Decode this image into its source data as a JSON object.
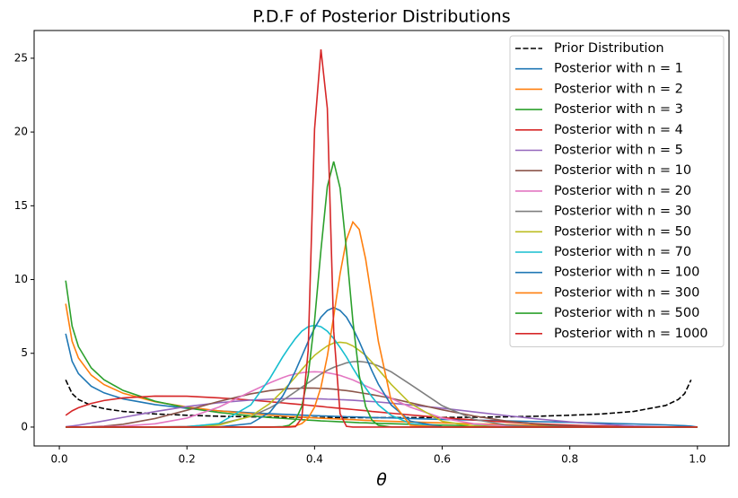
{
  "chart_data": {
    "type": "line",
    "title": "P.D.F of Posterior Distributions",
    "x_label": "θ",
    "x": [
      0.01,
      0.02,
      0.03,
      0.05,
      0.07,
      0.1,
      0.15,
      0.2,
      0.25,
      0.3,
      0.33,
      0.35,
      0.36,
      0.37,
      0.38,
      0.39,
      0.4,
      0.41,
      0.42,
      0.43,
      0.44,
      0.45,
      0.46,
      0.47,
      0.48,
      0.49,
      0.5,
      0.52,
      0.55,
      0.6,
      0.65,
      0.7,
      0.75,
      0.8,
      0.85,
      0.9,
      0.95,
      0.97,
      0.98,
      0.99,
      1.0
    ],
    "xlim": [
      -0.0395,
      1.0495
    ],
    "xticks": [
      {
        "value": 0,
        "label": "0.0"
      },
      0.2,
      0.4,
      0.6,
      0.8,
      {
        "value": 1,
        "label": "1.0"
      }
    ],
    "ylim": [
      -1.28,
      26.88
    ],
    "yticks": [
      0,
      5,
      10,
      15,
      20,
      25
    ],
    "grid": false,
    "legend": "upper right",
    "series": [
      {
        "name": "Prior Distribution",
        "color": "#000000",
        "dash": true,
        "values": [
          3.2,
          2.27,
          1.87,
          1.46,
          1.25,
          1.06,
          0.89,
          0.8,
          0.735,
          0.695,
          0.677,
          0.667,
          0.663,
          0.66,
          0.656,
          0.653,
          0.65,
          0.648,
          0.645,
          0.643,
          0.641,
          0.64,
          0.639,
          0.638,
          0.637,
          0.637,
          0.637,
          0.638,
          0.64,
          0.65,
          0.667,
          0.695,
          0.735,
          0.8,
          0.89,
          1.06,
          1.46,
          1.87,
          2.27,
          3.2,
          null
        ]
      },
      {
        "name": "Posterior with n = 1",
        "color": "#1f77b4",
        "values": [
          6.33,
          4.46,
          3.62,
          2.77,
          2.32,
          1.91,
          1.52,
          1.27,
          1.1,
          0.97,
          0.91,
          0.87,
          0.85,
          0.83,
          0.81,
          0.79,
          0.78,
          0.76,
          0.75,
          0.73,
          0.72,
          0.7,
          0.69,
          0.68,
          0.66,
          0.65,
          0.64,
          0.62,
          0.58,
          0.52,
          0.47,
          0.42,
          0.37,
          0.32,
          0.27,
          0.21,
          0.15,
          0.11,
          0.09,
          0.064,
          0
        ]
      },
      {
        "name": "Posterior with n = 2",
        "color": "#ff7f0e",
        "values": [
          8.36,
          5.82,
          4.68,
          3.52,
          2.88,
          2.29,
          1.72,
          1.36,
          1.1,
          0.91,
          0.81,
          0.75,
          0.72,
          0.7,
          0.67,
          0.645,
          0.62,
          0.6,
          0.58,
          0.56,
          0.54,
          0.52,
          0.5,
          0.48,
          0.46,
          0.44,
          0.42,
          0.39,
          0.35,
          0.28,
          0.22,
          0.17,
          0.12,
          0.085,
          0.053,
          0.028,
          0.01,
          0.004,
          0.002,
          0.001,
          0
        ]
      },
      {
        "name": "Posterior with n = 3",
        "color": "#2ca02c",
        "values": [
          9.93,
          6.85,
          5.45,
          4.01,
          3.21,
          2.48,
          1.75,
          1.3,
          0.99,
          0.76,
          0.65,
          0.59,
          0.56,
          0.53,
          0.5,
          0.47,
          0.45,
          0.42,
          0.4,
          0.38,
          0.36,
          0.34,
          0.32,
          0.3,
          0.29,
          0.27,
          0.25,
          0.23,
          0.19,
          0.13,
          0.09,
          0.06,
          0.037,
          0.02,
          0.009,
          0.003,
          0.001,
          0,
          0,
          0,
          0
        ]
      },
      {
        "name": "Posterior with n = 4",
        "color": "#d62728",
        "values": [
          0.795,
          1.1,
          1.31,
          1.6,
          1.8,
          1.98,
          2.1,
          2.09,
          1.98,
          1.83,
          1.72,
          1.64,
          1.6,
          1.56,
          1.52,
          1.48,
          1.44,
          1.4,
          1.35,
          1.31,
          1.27,
          1.23,
          1.19,
          1.15,
          1.11,
          1.06,
          1.02,
          0.94,
          0.82,
          0.64,
          0.48,
          0.34,
          0.22,
          0.13,
          0.065,
          0.024,
          0.004,
          0,
          0,
          0,
          0
        ]
      },
      {
        "name": "Posterior with n = 5",
        "color": "#9467bd",
        "values": [
          0.026,
          0.073,
          0.13,
          0.27,
          0.42,
          0.66,
          1.05,
          1.39,
          1.65,
          1.83,
          1.89,
          1.92,
          1.925,
          1.93,
          1.93,
          1.93,
          1.92,
          1.91,
          1.89,
          1.88,
          1.86,
          1.84,
          1.82,
          1.79,
          1.76,
          1.73,
          1.7,
          1.62,
          1.5,
          1.28,
          1.03,
          0.78,
          0.55,
          0.35,
          0.19,
          0.073,
          0.014,
          0.003,
          0.001,
          0,
          0
        ]
      },
      {
        "name": "Posterior with n = 10",
        "color": "#8c564b",
        "values": [
          0,
          0,
          0.001,
          0.023,
          0.066,
          0.19,
          0.58,
          1.14,
          1.74,
          2.25,
          2.47,
          2.57,
          2.6,
          2.62,
          2.64,
          2.645,
          2.64,
          2.62,
          2.6,
          2.57,
          2.52,
          2.47,
          2.41,
          2.34,
          2.27,
          2.2,
          2.12,
          1.95,
          1.65,
          1.17,
          0.75,
          0.41,
          0.19,
          0.07,
          0.02,
          0,
          0,
          0,
          0,
          0,
          0
        ]
      },
      {
        "name": "Posterior with n = 20",
        "color": "#e377c2",
        "values": [
          0,
          0,
          0,
          0.01,
          0.03,
          0.06,
          0.22,
          0.61,
          1.35,
          2.4,
          3.0,
          3.35,
          3.5,
          3.6,
          3.68,
          3.73,
          3.75,
          3.73,
          3.68,
          3.6,
          3.5,
          3.35,
          3.2,
          3.0,
          2.8,
          2.6,
          2.4,
          1.95,
          1.35,
          0.61,
          0.22,
          0.06,
          0.01,
          0,
          0,
          0,
          0,
          0,
          0,
          0,
          0
        ]
      },
      {
        "name": "Posterior with n = 30",
        "color": "#7f7f7f",
        "values": [
          0,
          0,
          0,
          0,
          0,
          0,
          0.01,
          0.04,
          0.2,
          0.72,
          1.3,
          1.8,
          2.1,
          2.4,
          2.7,
          3.0,
          3.3,
          3.6,
          3.85,
          4.05,
          4.2,
          4.35,
          4.43,
          4.45,
          4.4,
          4.3,
          4.15,
          3.75,
          2.9,
          1.45,
          0.52,
          0.14,
          0.03,
          0,
          0,
          0,
          0,
          0,
          0,
          0,
          0
        ]
      },
      {
        "name": "Posterior with n = 50",
        "color": "#bcbd22",
        "values": [
          0,
          0,
          0,
          0,
          0,
          0,
          0,
          0.01,
          0.13,
          0.73,
          1.6,
          2.45,
          2.9,
          3.4,
          3.9,
          4.4,
          4.86,
          5.2,
          5.5,
          5.7,
          5.75,
          5.7,
          5.5,
          5.2,
          4.86,
          4.4,
          3.9,
          2.9,
          1.6,
          0.39,
          0.06,
          0,
          0,
          0,
          0,
          0,
          0,
          0,
          0,
          0,
          0
        ]
      },
      {
        "name": "Posterior with n = 70",
        "color": "#17becf",
        "values": [
          0,
          0,
          0,
          0,
          0,
          0,
          0,
          0.02,
          0.24,
          1.5,
          3.3,
          4.75,
          5.4,
          6.0,
          6.5,
          6.8,
          6.9,
          6.8,
          6.5,
          6.0,
          5.4,
          4.75,
          4.0,
          3.3,
          2.65,
          2.05,
          1.5,
          0.8,
          0.24,
          0.02,
          0,
          0,
          0,
          0,
          0,
          0,
          0,
          0,
          0,
          0,
          0
        ]
      },
      {
        "name": "Posterior with n = 100",
        "color": "#1f77b4",
        "values": [
          0,
          0,
          0,
          0,
          0,
          0,
          0,
          0,
          0.01,
          0.24,
          1.0,
          2.1,
          2.9,
          3.8,
          4.8,
          5.8,
          6.7,
          7.45,
          7.9,
          8.1,
          7.9,
          7.45,
          6.7,
          5.8,
          4.8,
          3.8,
          2.9,
          1.5,
          0.4,
          0.02,
          0,
          0,
          0,
          0,
          0,
          0,
          0,
          0,
          0,
          0,
          0
        ]
      },
      {
        "name": "Posterior with n = 300",
        "color": "#ff7f0e",
        "values": [
          0,
          0,
          0,
          0,
          0,
          0,
          0,
          0,
          0,
          0,
          0,
          0,
          0.03,
          0.08,
          0.24,
          0.61,
          1.35,
          2.7,
          4.8,
          7.5,
          10.4,
          12.7,
          13.9,
          13.4,
          11.4,
          8.6,
          5.8,
          1.8,
          0.13,
          0,
          0,
          0,
          0,
          0,
          0,
          0,
          0,
          0,
          0,
          0,
          0
        ]
      },
      {
        "name": "Posterior with n = 500",
        "color": "#2ca02c",
        "values": [
          0,
          0,
          0,
          0,
          0,
          0,
          0,
          0,
          0,
          0,
          0,
          0.03,
          0.12,
          0.46,
          1.4,
          3.5,
          7.2,
          12.0,
          16.3,
          18.0,
          16.2,
          12.0,
          7.2,
          3.5,
          1.4,
          0.46,
          0.12,
          0.01,
          0,
          0,
          0,
          0,
          0,
          0,
          0,
          0,
          0,
          0,
          0,
          0,
          0
        ]
      },
      {
        "name": "Posterior with n = 1000",
        "color": "#d62728",
        "values": [
          0,
          0,
          0,
          0,
          0,
          0,
          0,
          0,
          0,
          0,
          0,
          0,
          0,
          0.03,
          0.6,
          5.2,
          20.2,
          25.6,
          21.6,
          6.5,
          0.9,
          0.05,
          0,
          0,
          0,
          0,
          0,
          0,
          0,
          0,
          0,
          0,
          0,
          0,
          0,
          0,
          0,
          0,
          0,
          0,
          0
        ]
      }
    ]
  }
}
